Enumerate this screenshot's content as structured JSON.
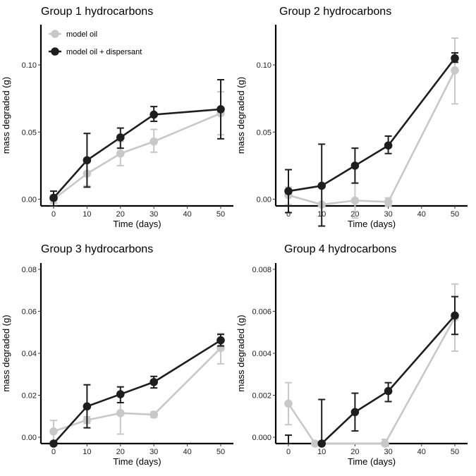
{
  "chart_data": [
    {
      "type": "line",
      "title": "Group 1 hydrocarbons",
      "xlabel": "Time (days)",
      "ylabel": "mass degraded (g)",
      "x": [
        0,
        10,
        20,
        30,
        50
      ],
      "xticks": [
        0,
        10,
        20,
        30,
        40,
        50
      ],
      "xtick_labels": [
        "0",
        "10",
        "20",
        "30",
        "40",
        "50"
      ],
      "xlim": [
        0,
        50
      ],
      "ylim": [
        -0.005,
        0.13
      ],
      "yticks": [
        0,
        0.05,
        0.1
      ],
      "ytick_labels": [
        "0.00",
        "0.05",
        "0.10"
      ],
      "legend": [
        "model oil",
        "model oil + dispersant"
      ],
      "series": [
        {
          "name": "model oil",
          "color": "#c8c8c8",
          "values": [
            0.0,
            0.019,
            0.034,
            0.043,
            0.064
          ],
          "err_low": [
            -0.003,
            0.01,
            0.025,
            0.035,
            0.048
          ],
          "err_high": [
            0.003,
            0.028,
            0.043,
            0.052,
            0.08
          ]
        },
        {
          "name": "model oil + dispersant",
          "color": "#1e1e1e",
          "values": [
            0.001,
            0.029,
            0.046,
            0.063,
            0.067
          ],
          "err_low": [
            -0.005,
            0.009,
            0.038,
            0.058,
            0.045
          ],
          "err_high": [
            0.006,
            0.049,
            0.053,
            0.069,
            0.089
          ]
        }
      ]
    },
    {
      "type": "line",
      "title": "Group 2 hydrocarbons",
      "xlabel": "Time (days)",
      "ylabel": "mass degraded (g)",
      "x": [
        0,
        10,
        20,
        30,
        50
      ],
      "xticks": [
        0,
        10,
        20,
        30,
        40,
        50
      ],
      "xtick_labels": [
        "0",
        "10",
        "20",
        "30",
        "40",
        "50"
      ],
      "xlim": [
        0,
        50
      ],
      "ylim": [
        -0.005,
        0.13
      ],
      "yticks": [
        0,
        0.05,
        0.1
      ],
      "ytick_labels": [
        "0.00",
        "0.05",
        "0.10"
      ],
      "series": [
        {
          "name": "model oil",
          "color": "#c8c8c8",
          "values": [
            0.003,
            -0.004,
            -0.001,
            -0.002,
            0.096
          ],
          "err_low": [
            -0.004,
            -0.005,
            -0.014,
            -0.005,
            0.071
          ],
          "err_high": [
            0.009,
            -0.003,
            0.012,
            0.001,
            0.12
          ]
        },
        {
          "name": "model oil + dispersant",
          "color": "#1e1e1e",
          "values": [
            0.006,
            0.01,
            0.025,
            0.04,
            0.105
          ],
          "err_low": [
            -0.01,
            -0.02,
            0.012,
            0.034,
            0.102
          ],
          "err_high": [
            0.022,
            0.041,
            0.038,
            0.047,
            0.109
          ]
        }
      ]
    },
    {
      "type": "line",
      "title": "Group 3 hydrocarbons",
      "xlabel": "Time (days)",
      "ylabel": "mass degraded (g)",
      "x": [
        0,
        10,
        20,
        30,
        50
      ],
      "xticks": [
        0,
        10,
        20,
        30,
        40,
        50
      ],
      "xtick_labels": [
        "0",
        "10",
        "20",
        "30",
        "40",
        "50"
      ],
      "xlim": [
        0,
        50
      ],
      "ylim": [
        -0.003,
        0.083
      ],
      "yticks": [
        0,
        0.02,
        0.04,
        0.06,
        0.08
      ],
      "ytick_labels": [
        "0.00",
        "0.02",
        "0.04",
        "0.06",
        "0.08"
      ],
      "series": [
        {
          "name": "model oil",
          "color": "#c8c8c8",
          "values": [
            0.0028,
            0.0082,
            0.0115,
            0.0108,
            0.0425
          ],
          "err_low": [
            -0.0025,
            0.0066,
            0.0015,
            0.0095,
            0.035
          ],
          "err_high": [
            0.008,
            0.0098,
            0.0215,
            0.012,
            0.0495
          ]
        },
        {
          "name": "model oil + dispersant",
          "color": "#1e1e1e",
          "values": [
            -0.003,
            0.0147,
            0.0205,
            0.0263,
            0.0462
          ],
          "err_low": [
            -0.003,
            0.0045,
            0.0165,
            0.0235,
            0.0435
          ],
          "err_high": [
            -0.003,
            0.025,
            0.024,
            0.029,
            0.049
          ]
        }
      ]
    },
    {
      "type": "line",
      "title": "Group 4 hydrocarbons",
      "xlabel": "Time (days)",
      "ylabel": "mass degraded (g)",
      "x": [
        0,
        10,
        20,
        30,
        50
      ],
      "xticks": [
        0,
        10,
        20,
        30,
        40,
        50
      ],
      "xtick_labels": [
        "0",
        "10",
        "20",
        "30",
        "40",
        "50"
      ],
      "xlim": [
        0,
        50
      ],
      "ylim": [
        -0.0003,
        0.0083
      ],
      "yticks": [
        0,
        0.002,
        0.004,
        0.006,
        0.008
      ],
      "ytick_labels": [
        "0.000",
        "0.002",
        "0.004",
        "0.006",
        "0.008"
      ],
      "series": [
        {
          "name": "model oil",
          "color": "#c8c8c8",
          "x": [
            0,
            8,
            29,
            50
          ],
          "values": [
            0.0016,
            -0.0003,
            -0.0003,
            0.0057
          ],
          "err_low": [
            0.0006,
            null,
            -0.0003,
            0.0041
          ],
          "err_high": [
            0.0026,
            null,
            -0.0001,
            0.0073
          ]
        },
        {
          "name": "model oil + dispersant",
          "color": "#1e1e1e",
          "x": [
            0,
            10,
            20,
            30,
            50
          ],
          "values": [
            null,
            -0.0003,
            0.0012,
            0.0022,
            0.0058
          ],
          "err_low": [
            -0.0003,
            -0.0003,
            0.0003,
            0.0017,
            0.0049
          ],
          "err_high": [
            0.0001,
            0.0018,
            0.0021,
            0.0026,
            0.0067
          ]
        }
      ]
    }
  ]
}
